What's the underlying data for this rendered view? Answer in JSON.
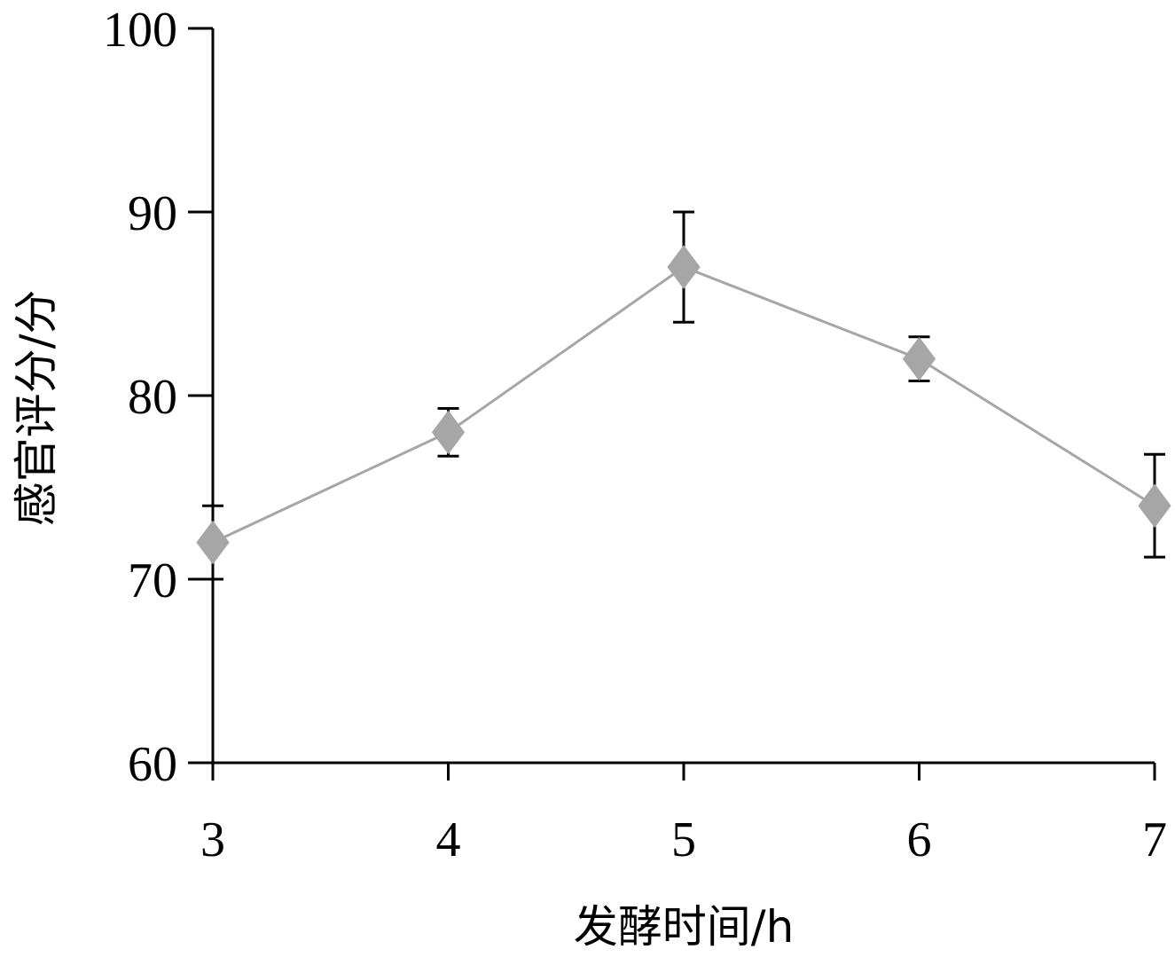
{
  "chart_data": {
    "type": "line",
    "title": "",
    "xlabel": "发酵时间/h",
    "ylabel": "感官评分/分",
    "x": [
      3,
      4,
      5,
      6,
      7
    ],
    "x_tick_labels": [
      "3",
      "4",
      "5",
      "6",
      "7"
    ],
    "y_ticks": [
      60,
      70,
      80,
      90,
      100
    ],
    "y_tick_labels": [
      "60",
      "70",
      "80",
      "90",
      "100"
    ],
    "xlim": [
      3,
      7
    ],
    "ylim": [
      60,
      100
    ],
    "grid": false,
    "series": [
      {
        "values": [
          72,
          78,
          87,
          82,
          74
        ],
        "error": [
          2,
          1.3,
          3,
          1.2,
          2.8
        ],
        "color": "#a6a6a6",
        "marker": "diamond"
      }
    ]
  }
}
